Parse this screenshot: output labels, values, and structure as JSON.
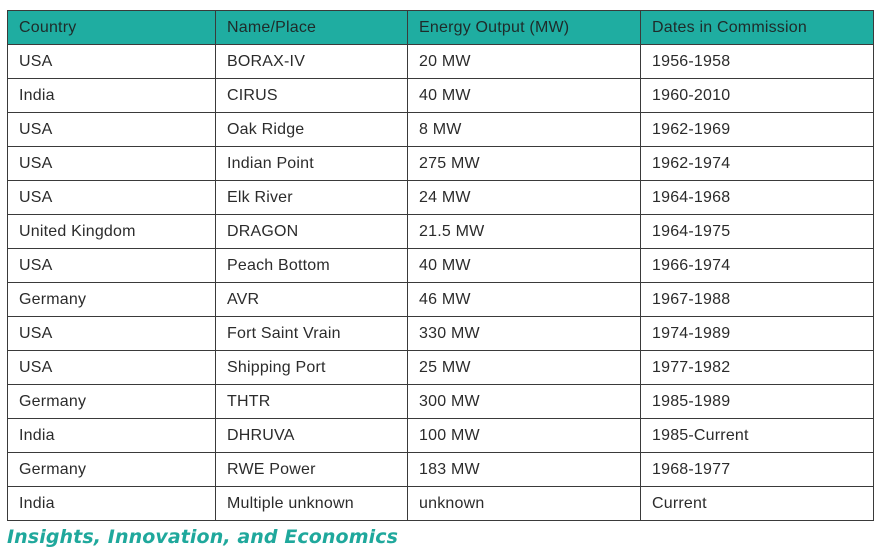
{
  "table": {
    "headers": [
      "Country",
      "Name/Place",
      "Energy Output (MW)",
      "Dates in Commission"
    ],
    "rows": [
      [
        "USA",
        "BORAX-IV",
        "20 MW",
        "1956-1958"
      ],
      [
        "India",
        "CIRUS",
        "40 MW",
        "1960-2010"
      ],
      [
        "USA",
        "Oak Ridge",
        "8 MW",
        "1962-1969"
      ],
      [
        "USA",
        "Indian Point",
        "275 MW",
        "1962-1974"
      ],
      [
        "USA",
        "Elk River",
        "24 MW",
        "1964-1968"
      ],
      [
        "United Kingdom",
        "DRAGON",
        "21.5 MW",
        "1964-1975"
      ],
      [
        "USA",
        "Peach Bottom",
        "40 MW",
        "1966-1974"
      ],
      [
        "Germany",
        "AVR",
        "46 MW",
        "1967-1988"
      ],
      [
        "USA",
        "Fort Saint Vrain",
        "330 MW",
        "1974-1989"
      ],
      [
        "USA",
        "Shipping Port",
        "25 MW",
        "1977-1982"
      ],
      [
        "Germany",
        "THTR",
        "300 MW",
        "1985-1989"
      ],
      [
        "India",
        "DHRUVA",
        "100 MW",
        "1985-Current"
      ],
      [
        "Germany",
        "RWE Power",
        "183 MW",
        "1968-1977"
      ],
      [
        "India",
        "Multiple unknown",
        "unknown",
        "Current"
      ]
    ]
  },
  "footer": {
    "title": "Insights, Innovation, and Economics"
  },
  "colors": {
    "header_background": "#1fada1",
    "footer_text": "#1fa89c",
    "border": "#3a3a3a"
  }
}
